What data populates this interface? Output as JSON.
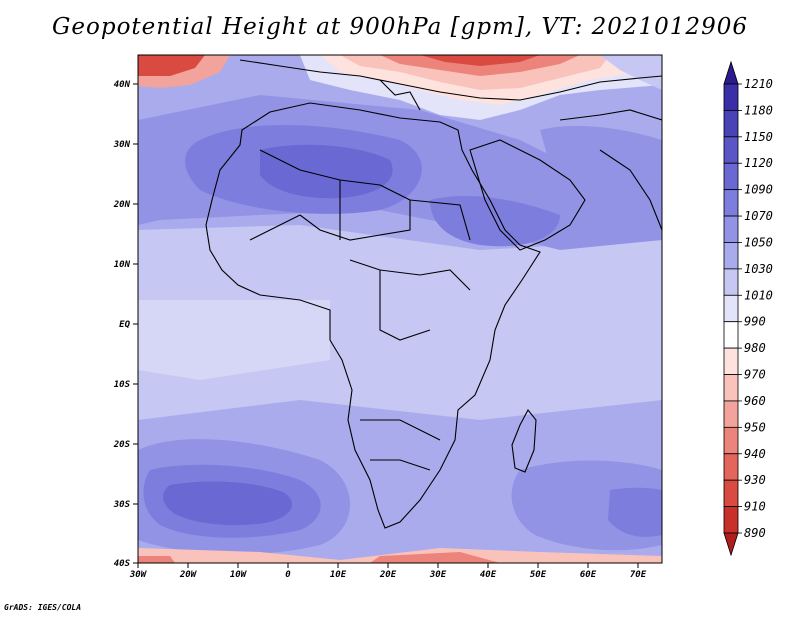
{
  "title": "Geopotential Height at 900hPa [gpm], VT: 2021012906",
  "credit": "GrADS: IGES/COLA",
  "map": {
    "lon_labels": [
      "30W",
      "20W",
      "10W",
      "0",
      "10E",
      "20E",
      "30E",
      "40E",
      "50E",
      "60E",
      "70E"
    ],
    "lat_labels": [
      "40N",
      "30N",
      "20N",
      "10N",
      "EQ",
      "10S",
      "20S",
      "30S",
      "40S"
    ]
  },
  "colorbar": {
    "levels": [
      "1210",
      "1180",
      "1150",
      "1120",
      "1090",
      "1070",
      "1050",
      "1030",
      "1010",
      "990",
      "980",
      "970",
      "960",
      "950",
      "940",
      "930",
      "910",
      "890"
    ],
    "colors": [
      "#2b1b8f",
      "#3a2fa6",
      "#4a43b8",
      "#5a56c8",
      "#6a69d4",
      "#7d7ddd",
      "#9293e5",
      "#aaabec",
      "#c6c7f3",
      "#e3e3fa",
      "#ffffff",
      "#fde2de",
      "#f9c3bc",
      "#f2a39b",
      "#ec847b",
      "#e4655c",
      "#d94a40",
      "#c8302a",
      "#b01d1b"
    ]
  }
}
